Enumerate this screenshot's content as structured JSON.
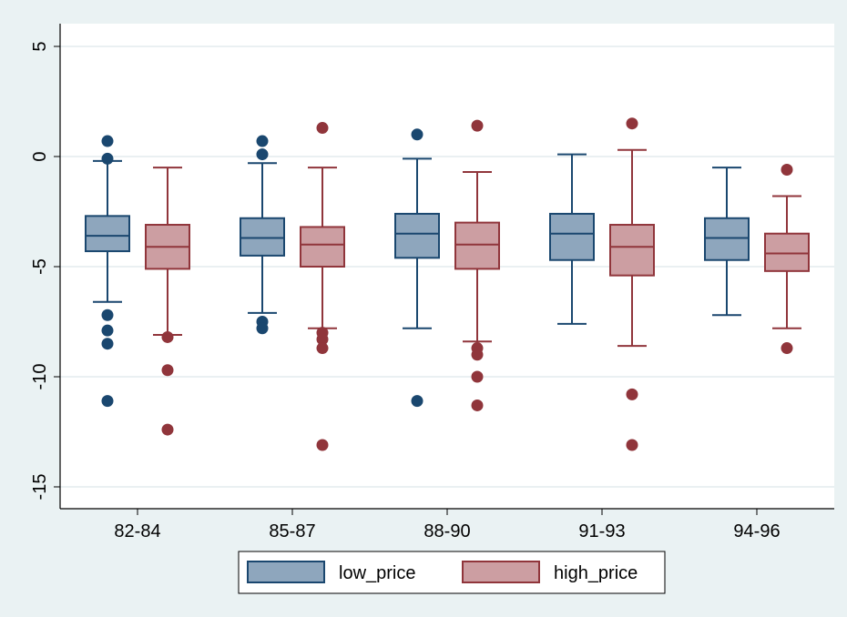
{
  "chart_data": {
    "type": "box",
    "categories": [
      "82-84",
      "85-87",
      "88-90",
      "91-93",
      "94-96"
    ],
    "ylim": [
      -15,
      5
    ],
    "yticks": [
      {
        "value": 5,
        "label": "5"
      },
      {
        "value": 0,
        "label": "0"
      },
      {
        "value": -5,
        "label": "-5"
      },
      {
        "value": -10,
        "label": "-10"
      },
      {
        "value": -15,
        "label": "-15"
      }
    ],
    "grid": true,
    "legend_position": "bottom",
    "series": [
      {
        "name": "low_price",
        "fill": "#8ea6bd",
        "stroke": "#1a476f",
        "dot": "#1a476f",
        "boxes": [
          {
            "lw": -6.6,
            "q1": -4.3,
            "med": -3.6,
            "q3": -2.7,
            "uw": -0.2,
            "outliers": [
              0.7,
              -0.1,
              -7.2,
              -7.9,
              -8.5,
              -11.1
            ]
          },
          {
            "lw": -7.1,
            "q1": -4.5,
            "med": -3.7,
            "q3": -2.8,
            "uw": -0.3,
            "outliers": [
              0.7,
              0.1,
              -7.5,
              -7.8
            ]
          },
          {
            "lw": -7.8,
            "q1": -4.6,
            "med": -3.5,
            "q3": -2.6,
            "uw": -0.1,
            "outliers": [
              1.0,
              -11.1
            ]
          },
          {
            "lw": -7.6,
            "q1": -4.7,
            "med": -3.5,
            "q3": -2.6,
            "uw": 0.1,
            "outliers": []
          },
          {
            "lw": -7.2,
            "q1": -4.7,
            "med": -3.7,
            "q3": -2.8,
            "uw": -0.5,
            "outliers": []
          }
        ]
      },
      {
        "name": "high_price",
        "fill": "#cc9ea2",
        "stroke": "#90353b",
        "dot": "#90353b",
        "boxes": [
          {
            "lw": -8.1,
            "q1": -5.1,
            "med": -4.1,
            "q3": -3.1,
            "uw": -0.5,
            "outliers": [
              -8.2,
              -9.7,
              -12.4
            ]
          },
          {
            "lw": -7.8,
            "q1": -5.0,
            "med": -4.0,
            "q3": -3.2,
            "uw": -0.5,
            "outliers": [
              1.3,
              -8.0,
              -8.3,
              -8.7,
              -13.1
            ]
          },
          {
            "lw": -8.4,
            "q1": -5.1,
            "med": -4.0,
            "q3": -3.0,
            "uw": -0.7,
            "outliers": [
              1.4,
              -8.7,
              -9.0,
              -10.0,
              -11.3
            ]
          },
          {
            "lw": -8.6,
            "q1": -5.4,
            "med": -4.1,
            "q3": -3.1,
            "uw": 0.3,
            "outliers": [
              1.5,
              -10.8,
              -13.1
            ]
          },
          {
            "lw": -7.8,
            "q1": -5.2,
            "med": -4.4,
            "q3": -3.5,
            "uw": -1.8,
            "outliers": [
              -0.6,
              -8.7
            ]
          }
        ]
      }
    ]
  }
}
